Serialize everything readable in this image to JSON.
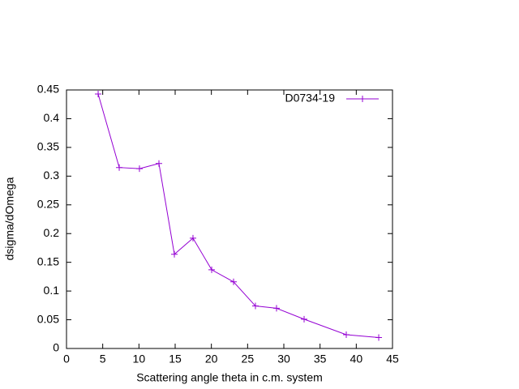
{
  "chart_data": {
    "type": "line",
    "xlabel": "Scattering angle theta in c.m. system",
    "ylabel": "dsigma/dOmega",
    "x": [
      4.37,
      7.28,
      10.07,
      12.76,
      14.89,
      17.46,
      20.04,
      23.06,
      26.08,
      28.99,
      32.8,
      38.62,
      43.1
    ],
    "series": [
      {
        "name": "D0734-19",
        "color": "#9400d3",
        "values": [
          0.443,
          0.315,
          0.313,
          0.322,
          0.164,
          0.192,
          0.137,
          0.116,
          0.074,
          0.07,
          0.051,
          0.024,
          0.019
        ]
      }
    ],
    "xlim": [
      0,
      45
    ],
    "ylim": [
      0,
      0.45
    ],
    "xticks": [
      0,
      5,
      10,
      15,
      20,
      25,
      30,
      35,
      40,
      45
    ],
    "yticks": [
      0,
      0.05,
      0.1,
      0.15,
      0.2,
      0.25,
      0.3,
      0.35,
      0.4,
      0.45
    ],
    "legend": "top-right"
  }
}
